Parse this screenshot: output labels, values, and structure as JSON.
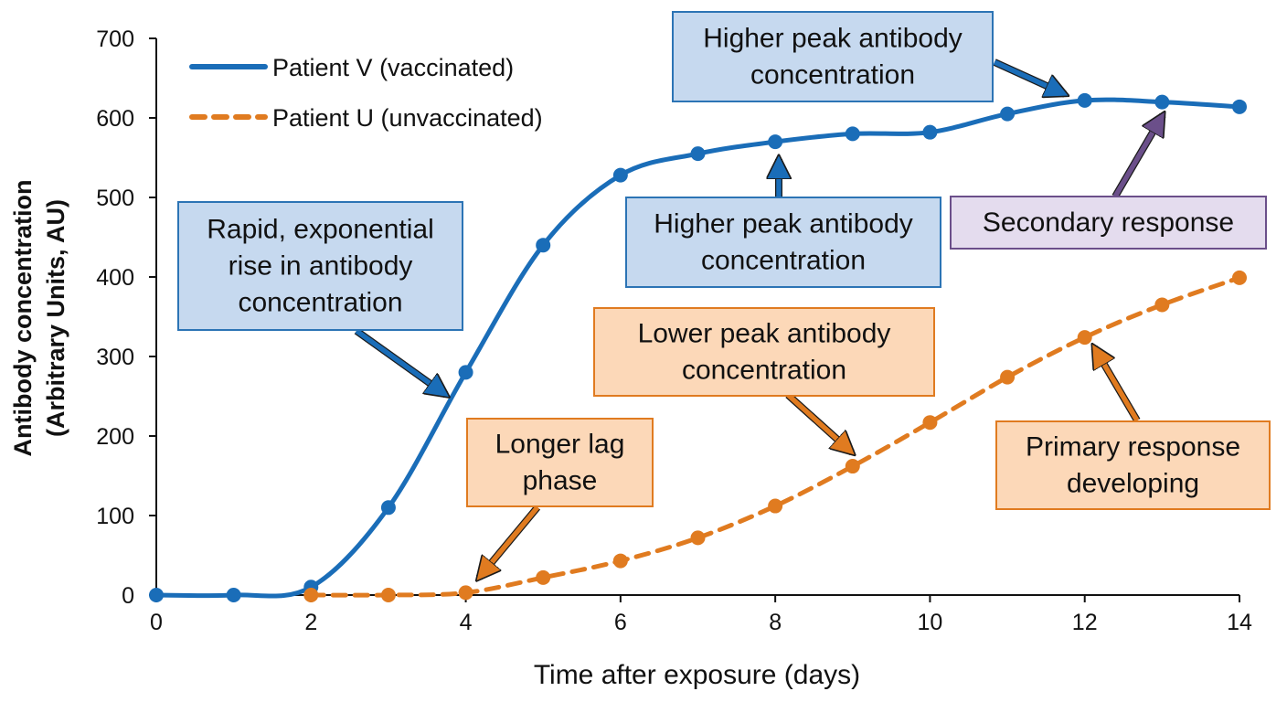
{
  "chart_data": {
    "type": "line",
    "title": "",
    "xlabel": "Time after exposure (days)",
    "ylabel_lines": [
      "Antibody concentration",
      "(Arbitrary Units, AU)"
    ],
    "xlim": [
      0,
      14
    ],
    "ylim": [
      0,
      700
    ],
    "xticks": [
      0,
      2,
      4,
      6,
      8,
      10,
      12,
      14
    ],
    "yticks": [
      0,
      100,
      200,
      300,
      400,
      500,
      600,
      700
    ],
    "grid": false,
    "legend_position": "top-left",
    "series": [
      {
        "name": "Patient V (vaccinated)",
        "color": "#1a6db8",
        "style": "solid",
        "x": [
          0,
          1,
          2,
          3,
          4,
          5,
          6,
          7,
          8,
          9,
          10,
          11,
          12,
          13,
          14
        ],
        "y": [
          0,
          0,
          10,
          110,
          280,
          440,
          528,
          555,
          570,
          580,
          582,
          605,
          622,
          620,
          614
        ]
      },
      {
        "name": "Patient U (unvaccinated)",
        "color": "#e07b20",
        "style": "dashed",
        "x": [
          2,
          3,
          4,
          5,
          6,
          7,
          8,
          9,
          10,
          11,
          12,
          13,
          14
        ],
        "y": [
          0,
          0,
          3,
          22,
          43,
          72,
          112,
          162,
          217,
          274,
          324,
          365,
          399
        ]
      }
    ],
    "annotations": [
      {
        "id": "rapid-rise",
        "lines": [
          "Rapid, exponential",
          "rise in antibody",
          "concentration"
        ],
        "theme": "blue",
        "arrow_from": [
          390,
          362
        ],
        "arrow_to": [
          488,
          432
        ]
      },
      {
        "id": "higher-peak-upper",
        "lines": [
          "Higher peak antibody",
          "concentration"
        ],
        "theme": "blue",
        "arrow_from": [
          1088,
          68
        ],
        "arrow_to": [
          1165,
          103
        ]
      },
      {
        "id": "higher-peak-middle",
        "lines": [
          "Higher peak antibody",
          "concentration"
        ],
        "theme": "blue",
        "arrow_from": [
          852,
          215
        ],
        "arrow_to": [
          852,
          174
        ]
      },
      {
        "id": "secondary-response",
        "lines": [
          "Secondary response"
        ],
        "theme": "purple",
        "arrow_from": [
          1220,
          215
        ],
        "arrow_to": [
          1272,
          126
        ]
      },
      {
        "id": "lower-peak",
        "lines": [
          "Lower peak antibody",
          "concentration"
        ],
        "theme": "orange",
        "arrow_from": [
          862,
          432
        ],
        "arrow_to": [
          932,
          495
        ]
      },
      {
        "id": "longer-lag",
        "lines": [
          "Longer lag",
          "phase"
        ],
        "theme": "orange",
        "arrow_from": [
          588,
          555
        ],
        "arrow_to": [
          524,
          632
        ]
      },
      {
        "id": "primary-response",
        "lines": [
          "Primary response",
          "developing"
        ],
        "theme": "orange",
        "arrow_from": [
          1244,
          460
        ],
        "arrow_to": [
          1197,
          380
        ]
      }
    ],
    "themes": {
      "blue": {
        "fill": "#c6d9ef",
        "stroke": "#2c74b5",
        "arrow": "#1a6db8"
      },
      "orange": {
        "fill": "#fcd8b8",
        "stroke": "#e07b20",
        "arrow": "#e07b20"
      },
      "purple": {
        "fill": "#e4dcee",
        "stroke": "#6b4f8a",
        "arrow": "#6b4f8a"
      }
    }
  }
}
